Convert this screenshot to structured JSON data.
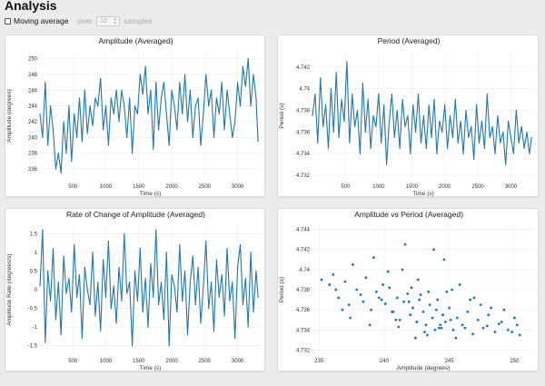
{
  "page": {
    "title": "Analysis"
  },
  "controls": {
    "moving_average_label": "Moving average",
    "moving_average_checked": false,
    "over_label": "over",
    "window_value": "10",
    "samples_label": "samples"
  },
  "colors": {
    "series": "#1f77b4",
    "background": "#ececec",
    "panel": "#ffffff"
  },
  "chart_data": [
    {
      "type": "line",
      "title": "Amplitude (Averaged)",
      "xlabel": "Time (s)",
      "ylabel": "Amplitude (degrees)",
      "xlim": [
        0,
        3350
      ],
      "ylim": [
        234.5,
        251
      ],
      "xticks": [
        500,
        1000,
        1500,
        2000,
        2500,
        3000
      ],
      "yticks": [
        236,
        238,
        240,
        242,
        244,
        246,
        248,
        250
      ],
      "grid": true,
      "series": [
        {
          "x": [
            0,
            40,
            80,
            120,
            160,
            200,
            240,
            280,
            320,
            360,
            400,
            440,
            480,
            520,
            560,
            600,
            640,
            680,
            720,
            760,
            800,
            840,
            880,
            920,
            960,
            1000,
            1040,
            1080,
            1120,
            1160,
            1200,
            1240,
            1280,
            1320,
            1360,
            1400,
            1440,
            1480,
            1520,
            1560,
            1600,
            1640,
            1680,
            1720,
            1760,
            1800,
            1840,
            1880,
            1920,
            1960,
            2000,
            2040,
            2080,
            2120,
            2160,
            2200,
            2240,
            2280,
            2320,
            2360,
            2400,
            2440,
            2480,
            2520,
            2560,
            2600,
            2640,
            2680,
            2720,
            2760,
            2800,
            2840,
            2880,
            2920,
            2960,
            3000,
            3040,
            3080,
            3120,
            3160,
            3200,
            3240,
            3280,
            3310
          ],
          "y": [
            243,
            240,
            247,
            239,
            244,
            241,
            236,
            238,
            235.5,
            242,
            238,
            244,
            237,
            243,
            240,
            245,
            239.5,
            246,
            240.5,
            244,
            241.5,
            245,
            244,
            247.5,
            241,
            244,
            239,
            245,
            243,
            246,
            242,
            246,
            244,
            240,
            245,
            238,
            244,
            243,
            248,
            245.5,
            249,
            243,
            246,
            238.5,
            247,
            241,
            245,
            247,
            243,
            239,
            246,
            244,
            241,
            247,
            243,
            248,
            242,
            246,
            240,
            244,
            245,
            239,
            243,
            248,
            244,
            246,
            240,
            245,
            243,
            247,
            241,
            246,
            243,
            240,
            242,
            247,
            244,
            249,
            246.5,
            250,
            244,
            248,
            245,
            239.5
          ]
        }
      ]
    },
    {
      "type": "line",
      "title": "Period (Averaged)",
      "xlabel": "Time (s)",
      "ylabel": "Period (s)",
      "xlim": [
        0,
        3350
      ],
      "ylim": [
        4.7315,
        4.7435
      ],
      "xticks": [
        500,
        1000,
        1500,
        2000,
        2500,
        3000
      ],
      "yticks": [
        4.732,
        4.734,
        4.736,
        4.738,
        4.74,
        4.742
      ],
      "grid": true,
      "series": [
        {
          "x": [
            0,
            40,
            80,
            120,
            160,
            200,
            240,
            280,
            320,
            360,
            400,
            440,
            480,
            520,
            560,
            600,
            640,
            680,
            720,
            760,
            800,
            840,
            880,
            920,
            960,
            1000,
            1040,
            1080,
            1120,
            1160,
            1200,
            1240,
            1280,
            1320,
            1360,
            1400,
            1440,
            1480,
            1520,
            1560,
            1600,
            1640,
            1680,
            1720,
            1760,
            1800,
            1840,
            1880,
            1920,
            1960,
            2000,
            2040,
            2080,
            2120,
            2160,
            2200,
            2240,
            2280,
            2320,
            2360,
            2400,
            2440,
            2480,
            2520,
            2560,
            2600,
            2640,
            2680,
            2720,
            2760,
            2800,
            2840,
            2880,
            2920,
            2960,
            3000,
            3040,
            3080,
            3120,
            3160,
            3200,
            3240,
            3280,
            3310
          ],
          "y": [
            4.7375,
            4.7395,
            4.735,
            4.741,
            4.7365,
            4.7385,
            4.7345,
            4.74,
            4.736,
            4.7415,
            4.7355,
            4.739,
            4.737,
            4.7425,
            4.735,
            4.7395,
            4.7365,
            4.738,
            4.734,
            4.7405,
            4.736,
            4.739,
            4.7345,
            4.7375,
            4.7365,
            4.7395,
            4.735,
            4.7385,
            4.733,
            4.737,
            4.7395,
            4.7355,
            4.738,
            4.7345,
            4.739,
            4.7365,
            4.7375,
            4.734,
            4.7385,
            4.736,
            4.7395,
            4.735,
            4.7375,
            4.7345,
            4.7385,
            4.7355,
            4.739,
            4.734,
            4.737,
            4.736,
            4.7385,
            4.7345,
            4.7375,
            4.7355,
            4.739,
            4.735,
            4.737,
            4.734,
            4.738,
            4.7355,
            4.7365,
            4.7335,
            4.7385,
            4.735,
            4.737,
            4.7345,
            4.7395,
            4.7355,
            4.7365,
            4.734,
            4.7375,
            4.735,
            4.736,
            4.733,
            4.737,
            4.7355,
            4.734,
            4.738,
            4.735,
            4.7365,
            4.7345,
            4.736,
            4.734,
            4.7355
          ]
        }
      ]
    },
    {
      "type": "line",
      "title": "Rate of Change of Amplitude (Averaged)",
      "xlabel": "Time (s)",
      "ylabel": "Amplitude Rate (degrees/s)",
      "xlim": [
        0,
        3350
      ],
      "ylim": [
        -1.75,
        1.75
      ],
      "xticks": [
        500,
        1000,
        1500,
        2000,
        2500,
        3000
      ],
      "yticks": [
        -1.5,
        -1,
        -0.5,
        0,
        0.5,
        1,
        1.5
      ],
      "grid": true,
      "series": [
        {
          "x": [
            0,
            40,
            80,
            120,
            160,
            200,
            240,
            280,
            320,
            360,
            400,
            440,
            480,
            520,
            560,
            600,
            640,
            680,
            720,
            760,
            800,
            840,
            880,
            920,
            960,
            1000,
            1040,
            1080,
            1120,
            1160,
            1200,
            1240,
            1280,
            1320,
            1360,
            1400,
            1440,
            1480,
            1520,
            1560,
            1600,
            1640,
            1680,
            1720,
            1760,
            1800,
            1840,
            1880,
            1920,
            1960,
            2000,
            2040,
            2080,
            2120,
            2160,
            2200,
            2240,
            2280,
            2320,
            2360,
            2400,
            2440,
            2480,
            2520,
            2560,
            2600,
            2640,
            2680,
            2720,
            2760,
            2800,
            2840,
            2880,
            2920,
            2960,
            3000,
            3040,
            3080,
            3120,
            3160,
            3200,
            3240,
            3280,
            3310
          ],
          "y": [
            0.1,
            1.6,
            -1.4,
            0.5,
            -0.3,
            1.1,
            -0.8,
            0.2,
            -1.2,
            0.9,
            -0.1,
            0.3,
            -0.6,
            1.2,
            -0.2,
            0.4,
            -1.3,
            0.6,
            0.0,
            -0.4,
            1.0,
            -0.7,
            0.2,
            -1.1,
            0.8,
            -0.2,
            1.3,
            -0.5,
            0.1,
            -0.9,
            0.6,
            -0.3,
            1.5,
            -0.1,
            0.2,
            -1.5,
            0.5,
            -0.3,
            1.1,
            -0.6,
            0.3,
            -1.0,
            0.7,
            -0.2,
            1.6,
            -0.4,
            0.2,
            -0.8,
            1.0,
            -1.5,
            0.4,
            0.1,
            -0.6,
            1.2,
            -0.3,
            0.5,
            -1.2,
            0.2,
            0.9,
            -0.4,
            0.6,
            -0.9,
            0.1,
            1.3,
            -0.5,
            0.2,
            -1.1,
            0.8,
            -0.2,
            0.4,
            -0.7,
            1.1,
            -0.3,
            0.2,
            -1.3,
            0.6,
            1.2,
            -0.4,
            0.3,
            -1.0,
            1.0,
            -0.6,
            0.5,
            -0.2
          ]
        }
      ]
    },
    {
      "type": "scatter",
      "title": "Amplitude vs Period (Averaged)",
      "xlabel": "Amplitude (degrees)",
      "ylabel": "Period (s)",
      "xlim": [
        234.5,
        251.5
      ],
      "ylim": [
        4.7315,
        4.7445
      ],
      "xticks": [
        235,
        240,
        245,
        250
      ],
      "yticks": [
        4.732,
        4.734,
        4.736,
        4.738,
        4.74,
        4.742,
        4.744
      ],
      "grid": true,
      "series": [
        {
          "x": [
            235.2,
            235.8,
            236.1,
            236.5,
            237.0,
            237.3,
            237.9,
            238.2,
            238.6,
            239.0,
            239.4,
            239.8,
            240.1,
            240.4,
            240.7,
            241.0,
            241.2,
            241.5,
            241.8,
            242.0,
            242.2,
            242.5,
            242.7,
            243.0,
            243.2,
            243.5,
            243.7,
            244.0,
            244.2,
            244.5,
            244.7,
            245.0,
            245.3,
            245.6,
            246.0,
            246.4,
            246.8,
            247.2,
            247.6,
            248.0,
            248.5,
            249.0,
            249.5,
            250.0,
            250.4,
            236.3,
            238.4,
            240.3,
            241.4,
            242.6,
            243.4,
            244.4,
            245.5,
            246.6,
            247.9,
            249.2,
            237.6,
            239.2,
            240.9,
            242.1,
            243.1,
            244.1,
            245.1,
            246.2,
            247.4,
            248.8,
            241.6,
            243.8,
            244.6,
            242.4,
            243.9,
            244.8,
            245.8,
            241.1,
            239.9,
            238.9,
            237.4,
            236.8,
            248.2,
            249.8,
            250.2,
            246.9,
            245.2,
            244.3,
            243.3,
            242.8,
            241.9,
            240.6,
            239.6
          ],
          "y": [
            4.739,
            4.7385,
            4.7395,
            4.7372,
            4.7388,
            4.7365,
            4.738,
            4.7375,
            4.7392,
            4.736,
            4.7378,
            4.737,
            4.7366,
            4.7382,
            4.7358,
            4.7372,
            4.735,
            4.7368,
            4.7376,
            4.7355,
            4.7362,
            4.7348,
            4.737,
            4.7358,
            4.7345,
            4.7365,
            4.7352,
            4.736,
            4.7342,
            4.7355,
            4.7348,
            4.7362,
            4.734,
            4.7352,
            4.7345,
            4.7358,
            4.7336,
            4.735,
            4.7342,
            4.7355,
            4.7338,
            4.7348,
            4.734,
            4.7352,
            4.7335,
            4.738,
            4.7368,
            4.7398,
            4.74,
            4.739,
            4.7378,
            4.7342,
            4.7332,
            4.737,
            4.7344,
            4.736,
            4.7405,
            4.7412,
            4.735,
            4.7382,
            4.7338,
            4.737,
            4.735,
            4.7342,
            4.7365,
            4.7346,
            4.7425,
            4.742,
            4.741,
            4.7332,
            4.734,
            4.7378,
            4.7385,
            4.7343,
            4.7385,
            4.7345,
            4.7352,
            4.736,
            4.7362,
            4.7338,
            4.7345,
            4.7372,
            4.738,
            4.7345,
            4.7335,
            4.7375,
            4.7368,
            4.7358,
            4.7372
          ]
        }
      ]
    }
  ]
}
